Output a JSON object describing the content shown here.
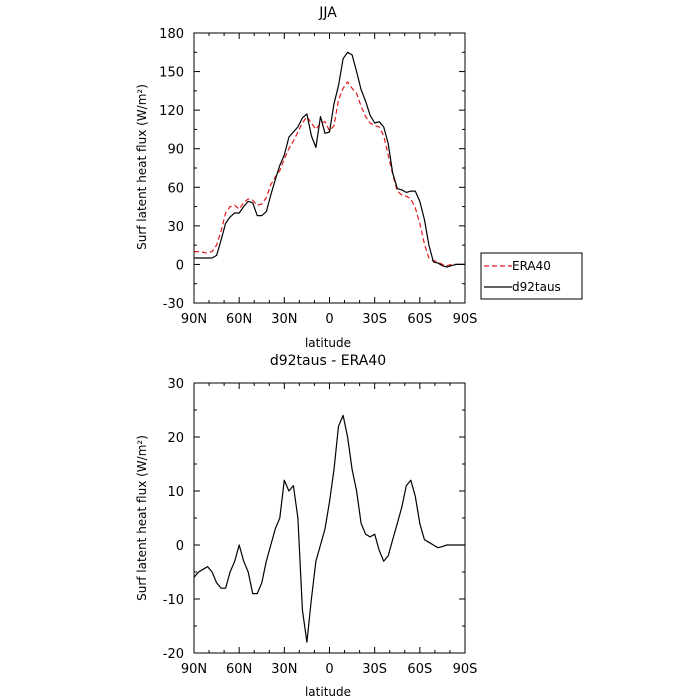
{
  "chart_data": [
    {
      "type": "line",
      "title": "JJA",
      "xlabel": "latitude",
      "ylabel": "Surf latent heat flux (W/m²)",
      "xlim": [
        -90,
        90
      ],
      "ylim": [
        -30,
        180
      ],
      "xticks": [
        -90,
        -60,
        -30,
        0,
        30,
        60,
        90
      ],
      "xtick_labels": [
        "90N",
        "60N",
        "30N",
        "0",
        "30S",
        "60S",
        "90S"
      ],
      "yticks": [
        -30,
        0,
        30,
        60,
        90,
        120,
        150,
        180
      ],
      "ytick_labels": [
        "-30",
        "0",
        "30",
        "60",
        "90",
        "120",
        "150",
        "180"
      ],
      "x": [
        -90,
        -86,
        -82,
        -78,
        -75,
        -72,
        -69,
        -66,
        -63,
        -60,
        -57,
        -54,
        -51,
        -48,
        -45,
        -42,
        -39,
        -36,
        -33,
        -30,
        -27,
        -24,
        -21,
        -18,
        -15,
        -12,
        -9,
        -6,
        -3,
        0,
        3,
        6,
        9,
        12,
        15,
        18,
        21,
        24,
        27,
        30,
        33,
        36,
        39,
        42,
        45,
        48,
        51,
        54,
        57,
        60,
        63,
        66,
        69,
        72,
        75,
        78,
        81,
        84,
        87,
        90
      ],
      "series": [
        {
          "name": "ERA40",
          "color": "#e41a1c",
          "dash": "dashed",
          "values": [
            10,
            10,
            9,
            10,
            15,
            26,
            40,
            45,
            46,
            43,
            48,
            51,
            50,
            46,
            47,
            52,
            62,
            68,
            73,
            82,
            90,
            96,
            103,
            110,
            115,
            110,
            105,
            110,
            111,
            104,
            108,
            128,
            137,
            142,
            137,
            133,
            123,
            115,
            110,
            108,
            107,
            100,
            85,
            70,
            57,
            54,
            53,
            51,
            44,
            32,
            16,
            5,
            3,
            2,
            0,
            -1,
            0,
            0,
            0,
            0
          ]
        },
        {
          "name": "d92taus",
          "color": "#000000",
          "dash": "solid",
          "values": [
            5,
            5,
            5,
            5,
            7,
            19,
            32,
            37,
            40,
            40,
            45,
            49,
            48,
            38,
            38,
            41,
            54,
            66,
            77,
            85,
            99,
            103,
            107,
            114,
            117,
            100,
            91,
            115,
            102,
            103,
            125,
            139,
            160,
            165,
            163,
            150,
            136,
            127,
            116,
            110,
            111,
            107,
            94,
            71,
            59,
            58,
            56,
            57,
            57,
            49,
            35,
            15,
            2,
            1,
            -1,
            -2,
            -1,
            0,
            0,
            0
          ]
        }
      ],
      "legend": "right"
    },
    {
      "type": "line",
      "title": "d92taus - ERA40",
      "xlabel": "latitude",
      "ylabel": "Surf latent heat flux (W/m²)",
      "xlim": [
        -90,
        90
      ],
      "ylim": [
        -20,
        30
      ],
      "xticks": [
        -90,
        -60,
        -30,
        0,
        30,
        60,
        90
      ],
      "xtick_labels": [
        "90N",
        "60N",
        "30N",
        "0",
        "30S",
        "60S",
        "90S"
      ],
      "yticks": [
        -20,
        -10,
        0,
        10,
        20,
        30
      ],
      "ytick_labels": [
        "-20",
        "-10",
        "0",
        "10",
        "20",
        "30"
      ],
      "x": [
        -90,
        -87,
        -84,
        -81,
        -78,
        -75,
        -72,
        -69,
        -66,
        -63,
        -60,
        -57,
        -54,
        -51,
        -48,
        -45,
        -42,
        -39,
        -36,
        -33,
        -30,
        -27,
        -24,
        -21,
        -18,
        -15,
        -12,
        -9,
        -6,
        -3,
        0,
        3,
        6,
        9,
        12,
        15,
        18,
        21,
        24,
        27,
        30,
        33,
        36,
        39,
        42,
        45,
        48,
        51,
        54,
        57,
        60,
        63,
        66,
        69,
        72,
        75,
        78,
        81,
        84,
        87,
        90
      ],
      "series": [
        {
          "name": "d92taus - ERA40",
          "color": "#000000",
          "values": [
            -6,
            -5,
            -4.5,
            -4,
            -5,
            -7,
            -8,
            -8,
            -5,
            -3,
            0,
            -3,
            -5,
            -9,
            -9,
            -7,
            -3,
            0,
            3,
            5,
            12,
            10,
            11,
            5,
            -12,
            -18,
            -10,
            -3,
            0,
            3,
            8,
            14,
            22,
            24,
            20,
            14,
            10,
            4,
            2,
            1.5,
            2,
            -1,
            -3,
            -2,
            1,
            4,
            7,
            11,
            12,
            9,
            4,
            1,
            0.5,
            0,
            -0.5,
            -0.3,
            0,
            0,
            0,
            0,
            0
          ]
        }
      ]
    }
  ]
}
